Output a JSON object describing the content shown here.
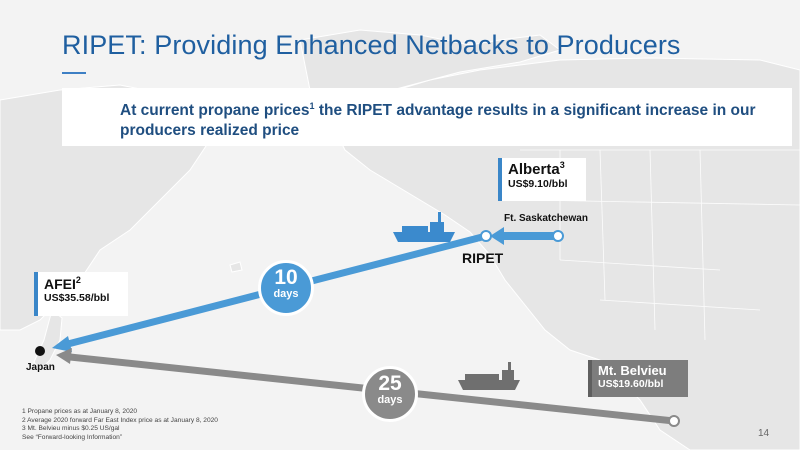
{
  "title": "RIPET: Providing Enhanced Netbacks to Producers",
  "banner": {
    "text_before_sup": "At current propane prices",
    "sup": "1",
    "text_after_sup": " the RIPET advantage results in a significant increase in our producers realized price"
  },
  "alberta": {
    "label": "Alberta",
    "sup": "3",
    "price": "US$9.10/bbl"
  },
  "afei": {
    "label": "AFEI",
    "sup": "2",
    "price": "US$35.58/bbl"
  },
  "mt_belvieu": {
    "label": "Mt. Belvieu",
    "price": "US$19.60/bbl"
  },
  "places": {
    "ft_saskatchewan": "Ft. Saskatchewan",
    "ripet": "RIPET",
    "japan": "Japan"
  },
  "routes": {
    "pacific": {
      "days": "10",
      "unit": "days"
    },
    "gulf": {
      "days": "25",
      "unit": "days"
    }
  },
  "footnotes": [
    "1  Propane prices as at January 8, 2020",
    "2  Average 2020 forward Far East Index price as at January 8, 2020",
    "3  Mt. Belvieu minus $0.25 US/gal",
    "See “Forward-looking Information”"
  ],
  "page_number": "14",
  "colors": {
    "title": "#1f5fa0",
    "pacific_route": "#4a9ad6",
    "gulf_route": "#8a8a8a",
    "box_accent": "#3a86c8"
  }
}
